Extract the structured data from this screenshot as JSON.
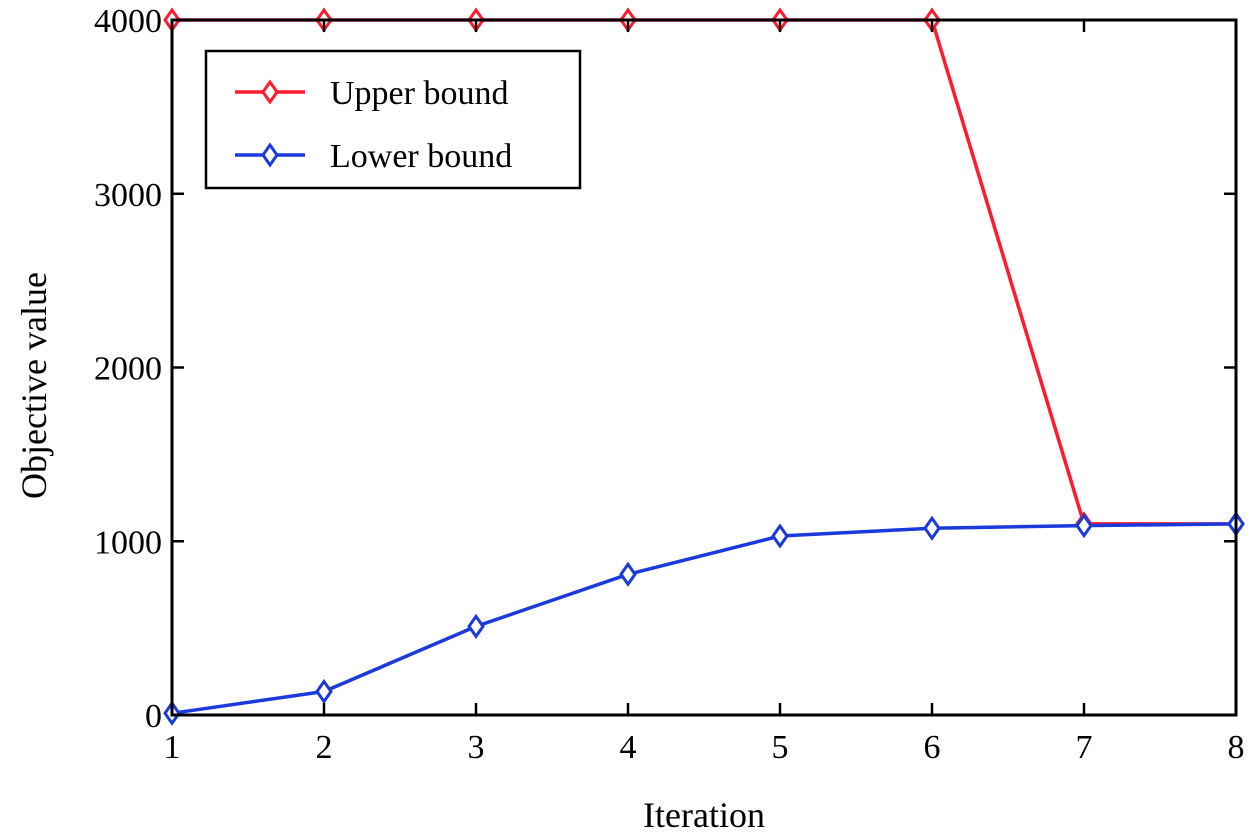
{
  "chart_data": {
    "type": "line",
    "xlabel": "Iteration",
    "ylabel": "Objective value",
    "xlim": [
      1,
      8
    ],
    "ylim": [
      0,
      4000
    ],
    "xticks": [
      1,
      2,
      3,
      4,
      5,
      6,
      7,
      8
    ],
    "yticks": [
      0,
      1000,
      2000,
      3000,
      4000
    ],
    "x": [
      1,
      2,
      3,
      4,
      5,
      6,
      7,
      8
    ],
    "grid": false,
    "legend_position": "top-left",
    "series": [
      {
        "name": "Upper bound",
        "color": "#ff1a2e",
        "marker": "diamond",
        "values": [
          4000,
          4000,
          4000,
          4000,
          4000,
          4000,
          1100,
          1100
        ]
      },
      {
        "name": "Lower bound",
        "color": "#1a3adb",
        "marker": "diamond",
        "values": [
          10,
          135,
          510,
          810,
          1030,
          1075,
          1090,
          1100
        ]
      }
    ]
  }
}
